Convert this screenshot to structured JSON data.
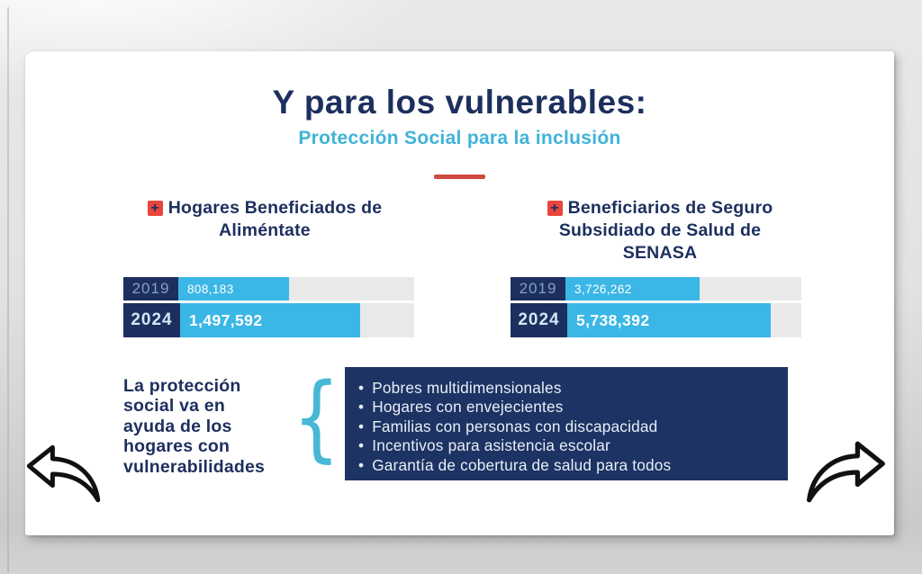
{
  "slide": {
    "title": "Y para los vulnerables:",
    "subtitle": "Protección Social para la inclusión"
  },
  "charts": [
    {
      "heading": "Hogares Beneficiados de Aliméntate",
      "heading_lines": [
        "Hogares Beneficiados de",
        "Aliméntate"
      ],
      "rows": [
        {
          "year": "2019",
          "value": "808,183",
          "pct": 47
        },
        {
          "year": "2024",
          "value": "1,497,592",
          "pct": 77
        }
      ]
    },
    {
      "heading": "Beneficiarios de Seguro Subsidiado de Salud de SENASA",
      "heading_lines": [
        "Beneficiarios de Seguro",
        "Subsidiado de Salud de",
        "SENASA"
      ],
      "rows": [
        {
          "year": "2019",
          "value": "3,726,262",
          "pct": 57
        },
        {
          "year": "2024",
          "value": "5,738,392",
          "pct": 87
        }
      ]
    }
  ],
  "callout": {
    "lead": "La protección social va en ayuda de los hogares con vulnerabilidades",
    "lead_lines": [
      "La protección",
      "social va en",
      "ayuda de los",
      "hogares con",
      "vulnerabilidades"
    ],
    "brace_glyph": "{",
    "bullets": [
      "Pobres multidimensionales",
      "Hogares con envejecientes",
      "Familias con personas con discapacidad",
      "Incentivos para asistencia escolar",
      "Garantía de cobertura de salud para todos"
    ]
  },
  "icons": {
    "plus": "+",
    "prev_arrow": "curved-arrow-left",
    "next_arrow": "curved-arrow-right"
  },
  "colors": {
    "navy": "#1c2f5e",
    "panel_navy": "#1c3363",
    "bar_cyan": "#3bb7e6",
    "subtitle_cyan": "#3fb3d8",
    "brace_cyan": "#47b8d6",
    "accent_red": "#e8453c",
    "divider_red": "#cf4a41",
    "track_gray": "#e9e9e9",
    "year_2019_text": "#84a0c4",
    "year_2024_text": "#cde8f5"
  },
  "chart_data": [
    {
      "type": "bar",
      "orientation": "horizontal",
      "title": "Hogares Beneficiados de Aliméntate",
      "categories": [
        "2019",
        "2024"
      ],
      "values": [
        808183,
        1497592
      ],
      "data_labels": [
        "808,183",
        "1,497,592"
      ],
      "xlim": [
        0,
        1950000
      ],
      "grid": false,
      "legend": false
    },
    {
      "type": "bar",
      "orientation": "horizontal",
      "title": "Beneficiarios de Seguro Subsidiado de Salud de SENASA",
      "categories": [
        "2019",
        "2024"
      ],
      "values": [
        3726262,
        5738392
      ],
      "data_labels": [
        "3,726,262",
        "5,738,392"
      ],
      "xlim": [
        0,
        6600000
      ],
      "grid": false,
      "legend": false
    }
  ]
}
